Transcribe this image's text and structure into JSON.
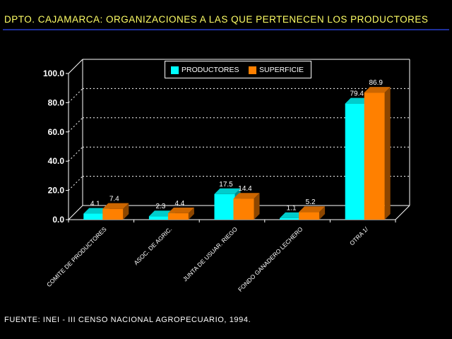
{
  "title": "DPTO. CAJAMARCA: ORGANIZACIONES A LAS QUE PERTENECEN LOS PRODUCTORES",
  "source": "FUENTE: INEI - III CENSO NACIONAL AGROPECUARIO, 1994.",
  "colors": {
    "background": "#000000",
    "title": "#ffff66",
    "productores": "#00ffff",
    "superficie": "#ff8000",
    "grid": "#ffffff"
  },
  "chart_data": {
    "type": "bar",
    "title": "DPTO. CAJAMARCA: ORGANIZACIONES A LAS QUE PERTENECEN LOS PRODUCTORES",
    "xlabel": "",
    "ylabel": "",
    "categories": [
      "COMITE DE PRODUCTORES",
      "ASOC. DE AGRIC.",
      "JUNTA DE USUAR. RIEGO",
      "FONDO GANADERO LECHERO",
      "OTRA 1/"
    ],
    "series": [
      {
        "name": "PRODUCTORES",
        "values": [
          4.1,
          2.3,
          17.5,
          1.1,
          79.4
        ]
      },
      {
        "name": "SUPERFICIE",
        "values": [
          7.4,
          4.4,
          14.4,
          5.2,
          86.9
        ]
      }
    ],
    "value_labels": {
      "PRODUCTORES": [
        "4.1",
        "2.3",
        "17.5",
        "1.1",
        "79.4"
      ],
      "SUPERFICIE": [
        "7.4",
        "4.4",
        "14.4",
        "5.2",
        "86.9"
      ]
    },
    "ylim": [
      0,
      100
    ],
    "yticks": [
      "0.0",
      "20.0",
      "40.0",
      "60.0",
      "80.0",
      "100.0"
    ],
    "ytick_values": [
      0,
      20,
      40,
      60,
      80,
      100
    ],
    "grid": true,
    "legend_position": "top-center",
    "style": "3d"
  }
}
